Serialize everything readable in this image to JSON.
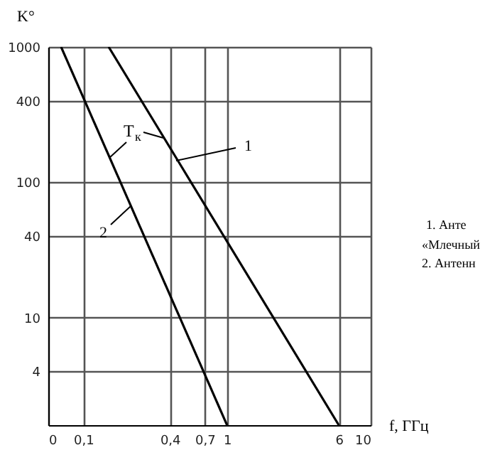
{
  "chart_data": {
    "type": "line",
    "ylabel": "K°",
    "xlabel": "f, ГГц",
    "series": [
      {
        "name": "1",
        "color": "#000000",
        "x": [
          0.15,
          6
        ],
        "values": [
          1000,
          1.6
        ]
      },
      {
        "name": "2",
        "color": "#000000",
        "x": [
          0.07,
          1
        ],
        "values": [
          1000,
          1.6
        ]
      }
    ],
    "log": "xy",
    "xlim": [
      0.057,
      10
    ],
    "xticks": [
      {
        "value": 0.057,
        "label": "0"
      },
      {
        "value": 0.1,
        "label": "0,1"
      },
      {
        "value": 0.4,
        "label": "0,4"
      },
      {
        "value": 0.7,
        "label": "0,7"
      },
      1,
      6,
      10
    ],
    "ylim": [
      1.6,
      1000
    ],
    "yticks": [
      4,
      10,
      40,
      100,
      400,
      1000
    ],
    "grid": true,
    "annotations": [
      "T$_{к}$",
      "1.    Анте",
      "«Млечный",
      "2. Антенн"
    ]
  }
}
